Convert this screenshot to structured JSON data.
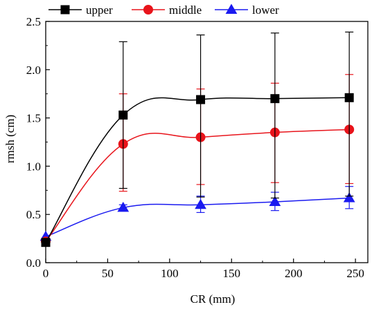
{
  "chart_data": {
    "type": "line",
    "xlabel": "CR (mm)",
    "ylabel": "rmsh (cm)",
    "xlim": [
      0,
      260
    ],
    "ylim": [
      0,
      2.5
    ],
    "xticks": [
      0,
      50,
      100,
      150,
      200,
      250
    ],
    "yticks": [
      0.0,
      0.5,
      1.0,
      1.5,
      2.0,
      2.5
    ],
    "xtick_labels": [
      "0",
      "50",
      "100",
      "150",
      "200",
      "250"
    ],
    "ytick_labels": [
      "0.0",
      "0.5",
      "1.0",
      "1.5",
      "2.0",
      "2.5"
    ],
    "legend_position": "top",
    "smooth": true,
    "series": [
      {
        "name": "upper",
        "color": "#000000",
        "marker": "square",
        "x": [
          0,
          62.5,
          125,
          185,
          245
        ],
        "y": [
          0.21,
          1.53,
          1.69,
          1.7,
          1.71
        ],
        "err_low": [
          0.21,
          0.77,
          0.68,
          0.67,
          0.69
        ],
        "err_high": [
          0.21,
          2.29,
          2.36,
          2.38,
          2.39
        ]
      },
      {
        "name": "middle",
        "color": "#e8141b",
        "marker": "circle",
        "x": [
          0,
          62.5,
          125,
          185,
          245
        ],
        "y": [
          0.22,
          1.23,
          1.3,
          1.35,
          1.38
        ],
        "err_low": [
          0.22,
          0.74,
          0.81,
          0.83,
          0.82
        ],
        "err_high": [
          0.22,
          1.75,
          1.8,
          1.86,
          1.95
        ]
      },
      {
        "name": "lower",
        "color": "#1a1af0",
        "marker": "triangle",
        "x": [
          0,
          62.5,
          125,
          185,
          245
        ],
        "y": [
          0.27,
          0.57,
          0.6,
          0.63,
          0.67
        ],
        "err_low": [
          0.27,
          0.55,
          0.52,
          0.54,
          0.56
        ],
        "err_high": [
          0.27,
          0.6,
          0.69,
          0.73,
          0.79
        ]
      }
    ]
  }
}
